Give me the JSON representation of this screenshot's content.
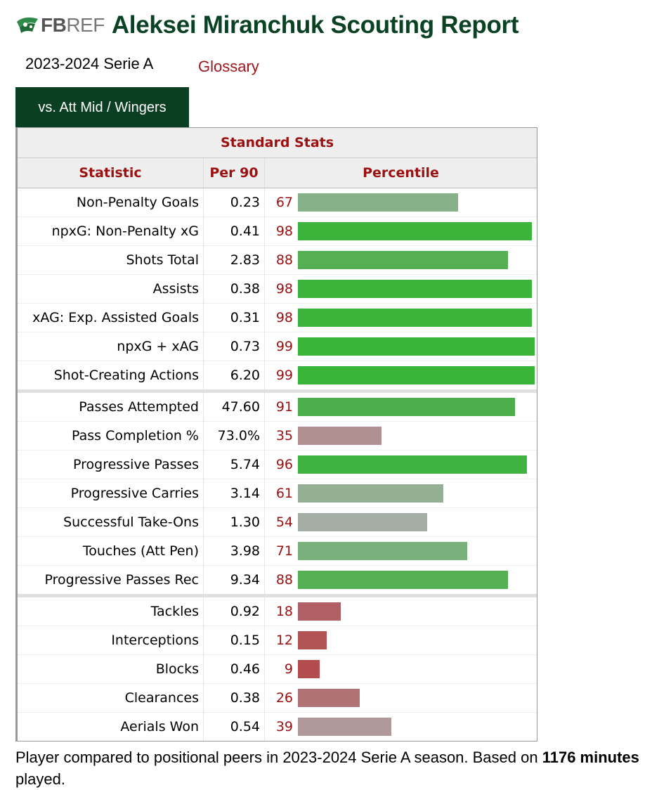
{
  "header": {
    "logo_fb": "FB",
    "logo_ref": "REF",
    "title": "Aleksei Miranchuk Scouting Report"
  },
  "season_label": "2023-2024 Serie A",
  "glossary_label": "Glossary",
  "tab_label": "vs. Att Mid / Wingers",
  "table": {
    "caption": "Standard Stats",
    "headers": [
      "Statistic",
      "Per 90",
      "Percentile"
    ],
    "rows": [
      {
        "stat": "Non-Penalty Goals",
        "per90": "0.23",
        "pct": 67,
        "color": "#86b088"
      },
      {
        "stat": "npxG: Non-Penalty xG",
        "per90": "0.41",
        "pct": 98,
        "color": "#3cb43c"
      },
      {
        "stat": "Shots Total",
        "per90": "2.83",
        "pct": 88,
        "color": "#55b054"
      },
      {
        "stat": "Assists",
        "per90": "0.38",
        "pct": 98,
        "color": "#3cb43c"
      },
      {
        "stat": "xAG: Exp. Assisted Goals",
        "per90": "0.31",
        "pct": 98,
        "color": "#3cb43c"
      },
      {
        "stat": "npxG + xAG",
        "per90": "0.73",
        "pct": 99,
        "color": "#38b438"
      },
      {
        "stat": "Shot-Creating Actions",
        "per90": "6.20",
        "pct": 99,
        "color": "#38b438"
      },
      {
        "stat": "Passes Attempted",
        "per90": "47.60",
        "pct": 91,
        "color": "#4caf4b"
      },
      {
        "stat": "Pass Completion %",
        "per90": "73.0%",
        "pct": 35,
        "color": "#b09090"
      },
      {
        "stat": "Progressive Passes",
        "per90": "5.74",
        "pct": 96,
        "color": "#40b23f"
      },
      {
        "stat": "Progressive Carries",
        "per90": "3.14",
        "pct": 61,
        "color": "#93b095"
      },
      {
        "stat": "Successful Take-Ons",
        "per90": "1.30",
        "pct": 54,
        "color": "#a4aea4"
      },
      {
        "stat": "Touches (Att Pen)",
        "per90": "3.98",
        "pct": 71,
        "color": "#7ab07c"
      },
      {
        "stat": "Progressive Passes Rec",
        "per90": "9.34",
        "pct": 88,
        "color": "#55b054"
      },
      {
        "stat": "Tackles",
        "per90": "0.92",
        "pct": 18,
        "color": "#b06064"
      },
      {
        "stat": "Interceptions",
        "per90": "0.15",
        "pct": 12,
        "color": "#b25456"
      },
      {
        "stat": "Blocks",
        "per90": "0.46",
        "pct": 9,
        "color": "#b44b4c"
      },
      {
        "stat": "Clearances",
        "per90": "0.38",
        "pct": 26,
        "color": "#b07274"
      },
      {
        "stat": "Aerials Won",
        "per90": "0.54",
        "pct": 39,
        "color": "#b09898"
      }
    ]
  },
  "footnote": {
    "text_before": "Player compared to positional peers in 2023-2024 Serie A season. Based on ",
    "minutes_bold": "1176 minutes",
    "text_after": " played."
  },
  "colors": {
    "title_green": "#0b4223",
    "tab_green": "#0b3f22",
    "accent_red": "#9b1010"
  }
}
